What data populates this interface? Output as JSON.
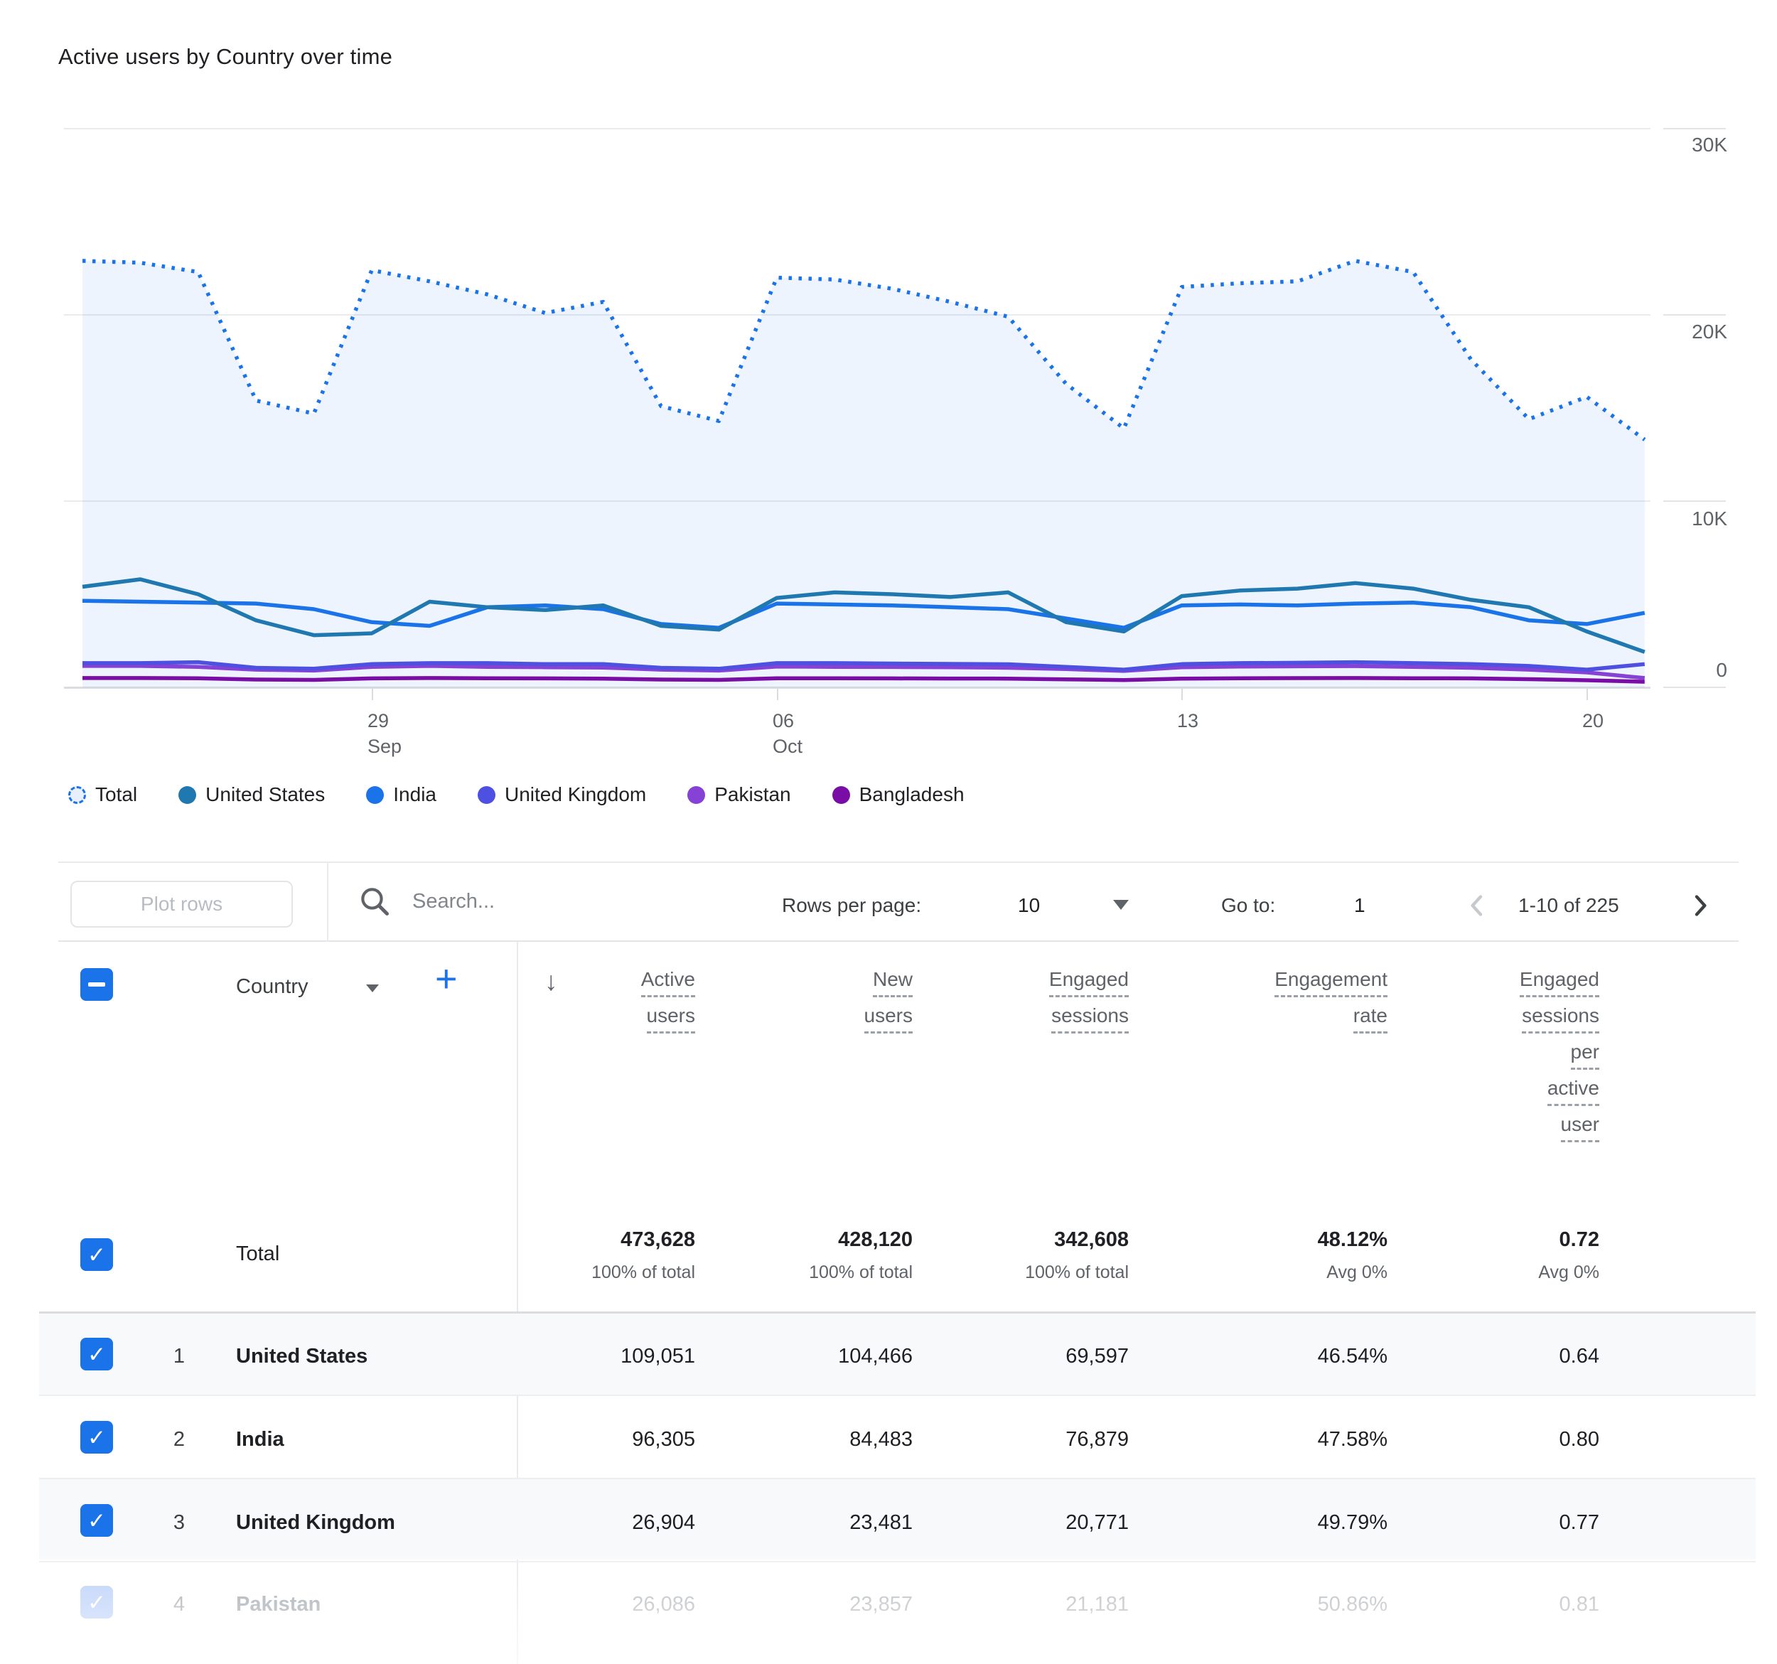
{
  "title": "Active users by Country over time",
  "chart_data": {
    "type": "line",
    "x": [
      "Sep 24",
      "Sep 25",
      "Sep 26",
      "Sep 27",
      "Sep 28",
      "Sep 29",
      "Sep 30",
      "Oct 1",
      "Oct 2",
      "Oct 3",
      "Oct 4",
      "Oct 5",
      "Oct 6",
      "Oct 7",
      "Oct 8",
      "Oct 9",
      "Oct 10",
      "Oct 11",
      "Oct 12",
      "Oct 13",
      "Oct 14",
      "Oct 15",
      "Oct 16",
      "Oct 17",
      "Oct 18",
      "Oct 19",
      "Oct 20",
      "Oct 21"
    ],
    "ylim": [
      0,
      30000
    ],
    "grid": true,
    "legend_position": "bottom",
    "y_ticks": [
      {
        "label": "30K",
        "value": 30000
      },
      {
        "label": "20K",
        "value": 20000
      },
      {
        "label": "10K",
        "value": 10000
      },
      {
        "label": "0",
        "value": 0
      }
    ],
    "x_ticks": [
      {
        "index": 5,
        "label": "29\nSep"
      },
      {
        "index": 12,
        "label": "06\nOct"
      },
      {
        "index": 19,
        "label": "13"
      },
      {
        "index": 26,
        "label": "20"
      }
    ],
    "series": [
      {
        "name": "Total",
        "color": "#1A73E8",
        "style": "dotted",
        "fill": "rgba(26,115,232,0.08)",
        "values": [
          22900,
          22800,
          22300,
          15400,
          14700,
          22400,
          21800,
          21100,
          20100,
          20700,
          15100,
          14300,
          22000,
          21900,
          21400,
          20700,
          19900,
          16300,
          13900,
          21500,
          21700,
          21800,
          22900,
          22300,
          17600,
          14400,
          15600,
          13300
        ]
      },
      {
        "name": "United States",
        "color": "#1F78B0",
        "style": "solid",
        "values": [
          5400,
          5800,
          5000,
          3600,
          2800,
          2900,
          4600,
          4300,
          4150,
          4400,
          3300,
          3100,
          4800,
          5100,
          5000,
          4850,
          5100,
          3500,
          3000,
          4900,
          5200,
          5300,
          5600,
          5300,
          4700,
          4300,
          3000,
          1900
        ]
      },
      {
        "name": "India",
        "color": "#1A73E8",
        "style": "solid",
        "values": [
          4650,
          4600,
          4550,
          4500,
          4200,
          3500,
          3300,
          4300,
          4400,
          4200,
          3400,
          3200,
          4500,
          4450,
          4400,
          4300,
          4200,
          3700,
          3200,
          4400,
          4450,
          4400,
          4500,
          4550,
          4300,
          3600,
          3400,
          4000
        ]
      },
      {
        "name": "United Kingdom",
        "color": "#4D50E0",
        "style": "solid",
        "values": [
          1300,
          1300,
          1350,
          1050,
          1000,
          1250,
          1300,
          1300,
          1250,
          1250,
          1050,
          1000,
          1300,
          1300,
          1280,
          1260,
          1240,
          1100,
          950,
          1250,
          1300,
          1320,
          1350,
          1300,
          1250,
          1150,
          950,
          1250
        ]
      },
      {
        "name": "Pakistan",
        "color": "#8642D4",
        "style": "solid",
        "values": [
          1150,
          1150,
          1100,
          950,
          900,
          1100,
          1150,
          1100,
          1080,
          1060,
          950,
          900,
          1120,
          1100,
          1090,
          1080,
          1050,
          980,
          880,
          1080,
          1120,
          1130,
          1140,
          1100,
          1050,
          950,
          800,
          500
        ]
      },
      {
        "name": "Bangladesh",
        "color": "#7A0DA6",
        "style": "solid",
        "values": [
          500,
          500,
          490,
          420,
          400,
          480,
          500,
          490,
          480,
          470,
          420,
          400,
          490,
          485,
          480,
          475,
          470,
          430,
          390,
          470,
          490,
          495,
          500,
          490,
          480,
          440,
          380,
          300
        ]
      }
    ]
  },
  "legend": [
    {
      "label": "Total",
      "color": "#1A73E8",
      "dashed": true
    },
    {
      "label": "United States",
      "color": "#1F78B0",
      "dashed": false
    },
    {
      "label": "India",
      "color": "#1A73E8",
      "dashed": false
    },
    {
      "label": "United Kingdom",
      "color": "#4D50E0",
      "dashed": false
    },
    {
      "label": "Pakistan",
      "color": "#8642D4",
      "dashed": false
    },
    {
      "label": "Bangladesh",
      "color": "#7A0DA6",
      "dashed": false
    }
  ],
  "toolbar": {
    "plot_rows_label": "Plot rows",
    "search_placeholder": "Search...",
    "rows_per_page_label": "Rows per page:",
    "rows_per_page_value": "10",
    "go_to_label": "Go to:",
    "go_to_value": "1",
    "pagination_range": "1-10 of 225"
  },
  "table": {
    "dimension_label": "Country",
    "col_headers": [
      [
        "Active",
        "users"
      ],
      [
        "New",
        "users"
      ],
      [
        "Engaged",
        "sessions"
      ],
      [
        "Engagement",
        "rate"
      ],
      [
        "Engaged",
        "sessions",
        "per",
        "active",
        "user"
      ]
    ],
    "total_row": {
      "label": "Total",
      "values": [
        "473,628",
        "428,120",
        "342,608",
        "48.12%",
        "0.72"
      ],
      "sub_values": [
        "100% of total",
        "100% of total",
        "100% of total",
        "Avg 0%",
        "Avg 0%"
      ]
    },
    "rows": [
      {
        "rank": "1",
        "country": "United States",
        "values": [
          "109,051",
          "104,466",
          "69,597",
          "46.54%",
          "0.64"
        ]
      },
      {
        "rank": "2",
        "country": "India",
        "values": [
          "96,305",
          "84,483",
          "76,879",
          "47.58%",
          "0.80"
        ]
      },
      {
        "rank": "3",
        "country": "United Kingdom",
        "values": [
          "26,904",
          "23,481",
          "20,771",
          "49.79%",
          "0.77"
        ]
      },
      {
        "rank": "4",
        "country": "Pakistan",
        "values": [
          "26,086",
          "23,857",
          "21,181",
          "50.86%",
          "0.81"
        ]
      }
    ]
  },
  "colors": {
    "accent_blue": "#1A73E8",
    "grid_line": "#E9EBEF",
    "axis_line": "#DADCE0",
    "secondary_text": "#5F6368"
  }
}
